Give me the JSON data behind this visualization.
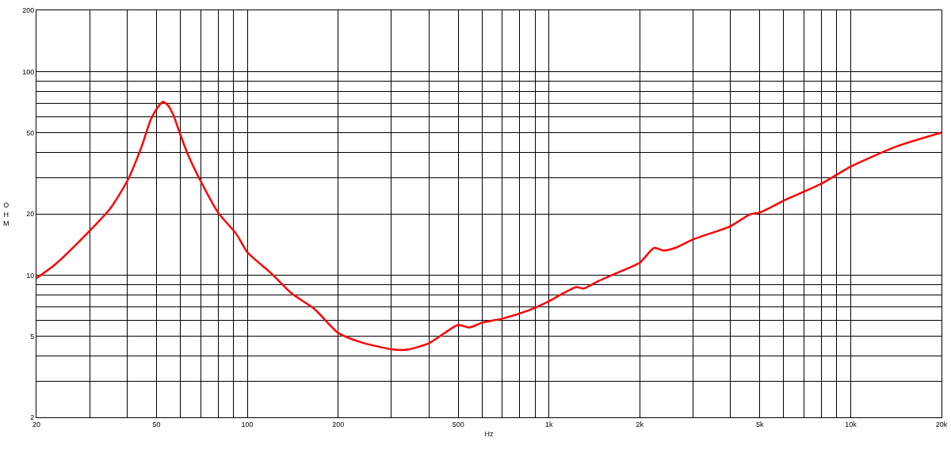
{
  "chart_data": {
    "type": "line",
    "xlabel": "Hz",
    "ylabel": "OHM",
    "log": "xy",
    "grid": true,
    "marker": "none",
    "line_style": "solid",
    "xlim": [
      20,
      20000
    ],
    "ylim": [
      2,
      200
    ],
    "xticks": [
      20,
      {
        "value": 30,
        "label": null
      },
      {
        "value": 40,
        "label": null
      },
      50,
      {
        "value": 60,
        "label": null
      },
      {
        "value": 70,
        "label": null
      },
      {
        "value": 80,
        "label": null
      },
      {
        "value": 90,
        "label": null
      },
      100,
      200,
      {
        "value": 300,
        "label": null
      },
      {
        "value": 400,
        "label": null
      },
      500,
      {
        "value": 600,
        "label": null
      },
      {
        "value": 700,
        "label": null
      },
      {
        "value": 800,
        "label": null
      },
      {
        "value": 900,
        "label": null
      },
      {
        "value": 1000,
        "label": "1k"
      },
      {
        "value": 2000,
        "label": "2k"
      },
      {
        "value": 3000,
        "label": null
      },
      {
        "value": 4000,
        "label": null
      },
      {
        "value": 5000,
        "label": "5k"
      },
      {
        "value": 6000,
        "label": null
      },
      {
        "value": 7000,
        "label": null
      },
      {
        "value": 8000,
        "label": null
      },
      {
        "value": 9000,
        "label": null
      },
      {
        "value": 10000,
        "label": "10k"
      },
      {
        "value": 20000,
        "label": "20k"
      }
    ],
    "yticks": [
      2,
      {
        "value": 3,
        "label": null
      },
      {
        "value": 4,
        "label": null
      },
      5,
      {
        "value": 6,
        "label": null
      },
      {
        "value": 7,
        "label": null
      },
      {
        "value": 8,
        "label": null
      },
      {
        "value": 9,
        "label": null
      },
      10,
      20,
      {
        "value": 30,
        "label": null
      },
      {
        "value": 40,
        "label": null
      },
      50,
      {
        "value": 60,
        "label": null
      },
      {
        "value": 70,
        "label": null
      },
      {
        "value": 80,
        "label": null
      },
      {
        "value": 90,
        "label": null
      },
      100,
      200
    ],
    "x": [
      20,
      23.1,
      29.3,
      35.1,
      40,
      44.6,
      47.9,
      50.5,
      52.5,
      54.4,
      56.9,
      60,
      63.6,
      70,
      80,
      92,
      100,
      120,
      140,
      167,
      200,
      239,
      303,
      342,
      400,
      448,
      500,
      546,
      600,
      700,
      850,
      1000,
      1140,
      1232,
      1300,
      1450,
      1734,
      2000,
      2230,
      2400,
      2620,
      3000,
      3996,
      4640,
      5000,
      6060,
      7960,
      10000,
      14080,
      20000
    ],
    "series": [
      {
        "color": "#ff0000",
        "values": [
          9.65,
          11.3,
          15.9,
          21.2,
          29.0,
          42.7,
          58.4,
          66.8,
          71.1,
          68.6,
          61.0,
          48.9,
          39.0,
          29.0,
          20.3,
          15.9,
          12.96,
          10.2,
          8.14,
          6.81,
          5.2,
          4.67,
          4.31,
          4.31,
          4.63,
          5.16,
          5.69,
          5.53,
          5.84,
          6.11,
          6.68,
          7.44,
          8.29,
          8.74,
          8.58,
          9.31,
          10.45,
          11.5,
          13.6,
          13.2,
          13.6,
          14.96,
          17.4,
          19.9,
          20.3,
          23.4,
          28.0,
          34.1,
          42.7,
          50.1
        ]
      }
    ]
  }
}
